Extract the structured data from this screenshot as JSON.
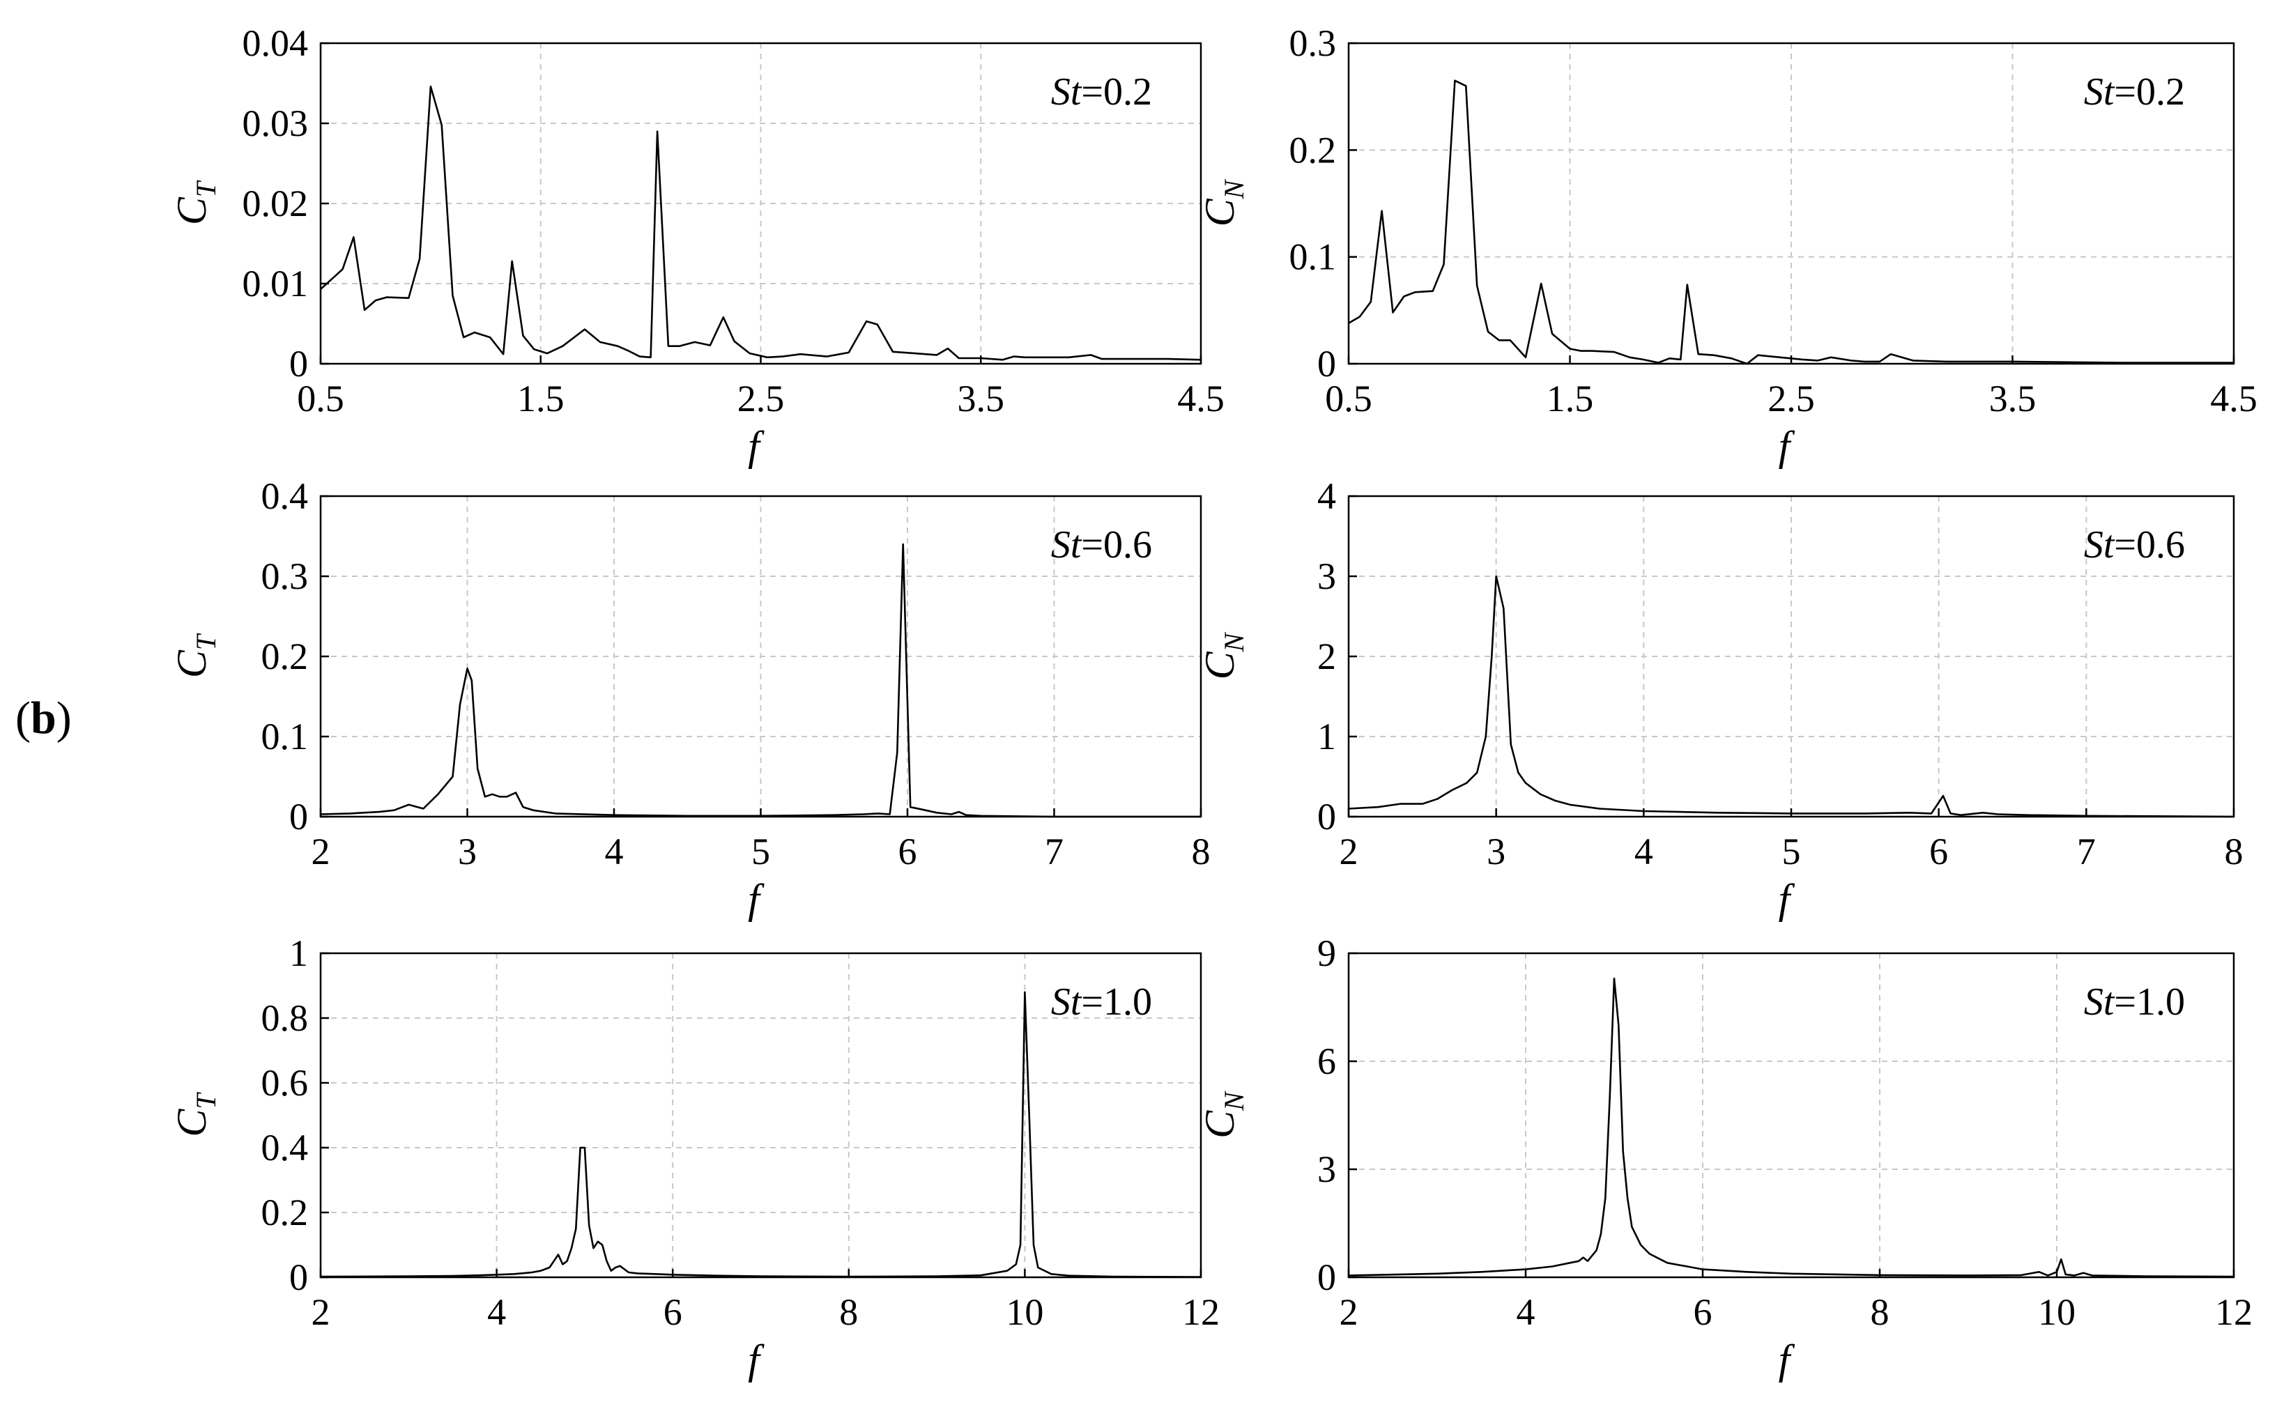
{
  "figure": {
    "panel_label_open": "(",
    "panel_label_letter": "b",
    "panel_label_close": ")"
  },
  "chart_data": [
    {
      "type": "line",
      "xlabel": "f",
      "ylabel": "C",
      "ylabel_sub": "T",
      "annotation": {
        "prefix": "St",
        "value": "=0.2"
      },
      "xlim": [
        0.5,
        4.5
      ],
      "ylim": [
        0,
        0.04
      ],
      "xticks": [
        0.5,
        1.5,
        2.5,
        3.5,
        4.5
      ],
      "xtick_labels": [
        "0.5",
        "1.5",
        "2.5",
        "3.5",
        "4.5"
      ],
      "yticks": [
        0,
        0.01,
        0.02,
        0.03,
        0.04
      ],
      "ytick_labels": [
        "0",
        "0.01",
        "0.02",
        "0.03",
        "0.04"
      ],
      "grid": true,
      "series": [
        {
          "x": [
            0.5,
            0.6,
            0.65,
            0.7,
            0.75,
            0.8,
            0.9,
            0.95,
            1.0,
            1.05,
            1.1,
            1.15,
            1.2,
            1.27,
            1.33,
            1.37,
            1.42,
            1.47,
            1.53,
            1.6,
            1.7,
            1.77,
            1.85,
            1.9,
            1.95,
            2.0,
            2.03,
            2.08,
            2.13,
            2.2,
            2.27,
            2.33,
            2.38,
            2.45,
            2.53,
            2.6,
            2.68,
            2.8,
            2.9,
            2.98,
            3.03,
            3.1,
            3.2,
            3.3,
            3.35,
            3.4,
            3.5,
            3.6,
            3.65,
            3.7,
            3.8,
            3.9,
            4.0,
            4.05,
            4.2,
            4.35,
            4.5
          ],
          "y": [
            0.0093,
            0.0118,
            0.0158,
            0.0067,
            0.0079,
            0.0083,
            0.0082,
            0.0131,
            0.0346,
            0.0298,
            0.0085,
            0.0033,
            0.0039,
            0.0033,
            0.0012,
            0.0128,
            0.0035,
            0.0018,
            0.0013,
            0.0022,
            0.0043,
            0.0027,
            0.0022,
            0.0016,
            0.0009,
            0.0008,
            0.029,
            0.0022,
            0.0022,
            0.0027,
            0.0023,
            0.0058,
            0.0028,
            0.0013,
            0.0008,
            0.0009,
            0.0012,
            0.0009,
            0.0014,
            0.0053,
            0.0049,
            0.0015,
            0.0013,
            0.0011,
            0.0019,
            0.0007,
            0.0007,
            0.0005,
            0.0009,
            0.0008,
            0.0008,
            0.0008,
            0.0011,
            0.0006,
            0.0006,
            0.0006,
            0.0005
          ]
        }
      ]
    },
    {
      "type": "line",
      "xlabel": "f",
      "ylabel": "C",
      "ylabel_sub": "N",
      "annotation": {
        "prefix": "St",
        "value": "=0.2"
      },
      "xlim": [
        0.5,
        4.5
      ],
      "ylim": [
        0,
        0.3
      ],
      "xticks": [
        0.5,
        1.5,
        2.5,
        3.5,
        4.5
      ],
      "xtick_labels": [
        "0.5",
        "1.5",
        "2.5",
        "3.5",
        "4.5"
      ],
      "yticks": [
        0,
        0.1,
        0.2,
        0.3
      ],
      "ytick_labels": [
        "0",
        "0.1",
        "0.2",
        "0.3"
      ],
      "grid": true,
      "series": [
        {
          "x": [
            0.5,
            0.55,
            0.6,
            0.65,
            0.7,
            0.75,
            0.8,
            0.88,
            0.93,
            0.98,
            1.03,
            1.08,
            1.13,
            1.18,
            1.23,
            1.3,
            1.37,
            1.42,
            1.5,
            1.55,
            1.6,
            1.7,
            1.77,
            1.83,
            1.9,
            1.95,
            2.0,
            2.03,
            2.08,
            2.15,
            2.23,
            2.3,
            2.35,
            2.45,
            2.55,
            2.62,
            2.68,
            2.77,
            2.83,
            2.9,
            2.95,
            3.05,
            3.2,
            3.5,
            4.0,
            4.5
          ],
          "y": [
            0.038,
            0.044,
            0.058,
            0.143,
            0.048,
            0.063,
            0.067,
            0.068,
            0.093,
            0.265,
            0.26,
            0.073,
            0.03,
            0.022,
            0.022,
            0.006,
            0.075,
            0.028,
            0.014,
            0.012,
            0.012,
            0.011,
            0.006,
            0.004,
            0.001,
            0.005,
            0.004,
            0.074,
            0.009,
            0.008,
            0.005,
            0.0,
            0.008,
            0.006,
            0.004,
            0.003,
            0.006,
            0.003,
            0.002,
            0.002,
            0.009,
            0.003,
            0.002,
            0.002,
            0.001,
            0.001
          ]
        }
      ]
    },
    {
      "type": "line",
      "xlabel": "f",
      "ylabel": "C",
      "ylabel_sub": "T",
      "annotation": {
        "prefix": "St",
        "value": "=0.6"
      },
      "xlim": [
        2,
        8
      ],
      "ylim": [
        0,
        0.4
      ],
      "xticks": [
        2,
        3,
        4,
        5,
        6,
        7,
        8
      ],
      "xtick_labels": [
        "2",
        "3",
        "4",
        "5",
        "6",
        "7",
        "8"
      ],
      "yticks": [
        0,
        0.1,
        0.2,
        0.3,
        0.4
      ],
      "ytick_labels": [
        "0",
        "0.1",
        "0.2",
        "0.3",
        "0.4"
      ],
      "grid": true,
      "series": [
        {
          "x": [
            2.0,
            2.2,
            2.4,
            2.5,
            2.6,
            2.7,
            2.8,
            2.9,
            2.95,
            3.0,
            3.03,
            3.07,
            3.12,
            3.17,
            3.22,
            3.27,
            3.33,
            3.38,
            3.45,
            3.6,
            4.0,
            4.5,
            5.0,
            5.5,
            5.7,
            5.8,
            5.88,
            5.93,
            5.97,
            6.02,
            6.1,
            6.2,
            6.3,
            6.35,
            6.4,
            6.5,
            7.0,
            8.0
          ],
          "y": [
            0.003,
            0.004,
            0.006,
            0.008,
            0.015,
            0.01,
            0.028,
            0.05,
            0.14,
            0.185,
            0.17,
            0.06,
            0.025,
            0.028,
            0.025,
            0.025,
            0.03,
            0.012,
            0.008,
            0.004,
            0.002,
            0.001,
            0.001,
            0.002,
            0.003,
            0.004,
            0.003,
            0.08,
            0.34,
            0.012,
            0.009,
            0.005,
            0.003,
            0.006,
            0.002,
            0.001,
            0.0,
            0.0
          ]
        }
      ]
    },
    {
      "type": "line",
      "xlabel": "f",
      "ylabel": "C",
      "ylabel_sub": "N",
      "annotation": {
        "prefix": "St",
        "value": "=0.6"
      },
      "xlim": [
        2,
        8
      ],
      "ylim": [
        0,
        4
      ],
      "xticks": [
        2,
        3,
        4,
        5,
        6,
        7,
        8
      ],
      "xtick_labels": [
        "2",
        "3",
        "4",
        "5",
        "6",
        "7",
        "8"
      ],
      "yticks": [
        0,
        1,
        2,
        3,
        4
      ],
      "ytick_labels": [
        "0",
        "1",
        "2",
        "3",
        "4"
      ],
      "grid": true,
      "series": [
        {
          "x": [
            2.0,
            2.2,
            2.35,
            2.5,
            2.6,
            2.7,
            2.8,
            2.87,
            2.93,
            2.97,
            3.0,
            3.05,
            3.1,
            3.15,
            3.2,
            3.3,
            3.4,
            3.5,
            3.7,
            4.0,
            4.5,
            5.0,
            5.5,
            5.8,
            5.95,
            6.03,
            6.08,
            6.15,
            6.3,
            6.4,
            6.6,
            7.0,
            8.0
          ],
          "y": [
            0.1,
            0.12,
            0.16,
            0.16,
            0.22,
            0.33,
            0.42,
            0.55,
            1.0,
            2.0,
            3.0,
            2.6,
            0.9,
            0.55,
            0.42,
            0.28,
            0.2,
            0.15,
            0.1,
            0.07,
            0.05,
            0.04,
            0.04,
            0.05,
            0.04,
            0.26,
            0.04,
            0.02,
            0.05,
            0.03,
            0.02,
            0.01,
            0.0
          ]
        }
      ]
    },
    {
      "type": "line",
      "xlabel": "f",
      "ylabel": "C",
      "ylabel_sub": "T",
      "annotation": {
        "prefix": "St",
        "value": "=1.0"
      },
      "xlim": [
        2,
        12
      ],
      "ylim": [
        0,
        1
      ],
      "xticks": [
        2,
        4,
        6,
        8,
        10,
        12
      ],
      "xtick_labels": [
        "2",
        "4",
        "6",
        "8",
        "10",
        "12"
      ],
      "yticks": [
        0,
        0.2,
        0.4,
        0.6,
        0.8,
        1
      ],
      "ytick_labels": [
        "0",
        "0.2",
        "0.4",
        "0.6",
        "0.8",
        "1"
      ],
      "grid": true,
      "series": [
        {
          "x": [
            2.0,
            3.0,
            3.5,
            3.8,
            4.0,
            4.2,
            4.4,
            4.5,
            4.6,
            4.7,
            4.75,
            4.8,
            4.85,
            4.9,
            4.95,
            5.0,
            5.05,
            5.1,
            5.15,
            5.2,
            5.25,
            5.3,
            5.35,
            5.4,
            5.5,
            5.6,
            5.8,
            6.0,
            6.5,
            7.0,
            8.0,
            9.0,
            9.5,
            9.8,
            9.9,
            9.95,
            10.0,
            10.05,
            10.1,
            10.15,
            10.3,
            10.5,
            11.0,
            12.0
          ],
          "y": [
            0.002,
            0.003,
            0.004,
            0.006,
            0.008,
            0.01,
            0.015,
            0.02,
            0.03,
            0.07,
            0.04,
            0.05,
            0.09,
            0.15,
            0.4,
            0.4,
            0.16,
            0.09,
            0.11,
            0.1,
            0.05,
            0.02,
            0.03,
            0.035,
            0.015,
            0.012,
            0.01,
            0.008,
            0.005,
            0.003,
            0.002,
            0.003,
            0.006,
            0.02,
            0.04,
            0.1,
            0.88,
            0.5,
            0.1,
            0.03,
            0.01,
            0.005,
            0.002,
            0.001
          ]
        }
      ]
    },
    {
      "type": "line",
      "xlabel": "f",
      "ylabel": "C",
      "ylabel_sub": "N",
      "annotation": {
        "prefix": "St",
        "value": "=1.0"
      },
      "xlim": [
        2,
        12
      ],
      "ylim": [
        0,
        9
      ],
      "xticks": [
        2,
        4,
        6,
        8,
        10,
        12
      ],
      "xtick_labels": [
        "2",
        "4",
        "6",
        "8",
        "10",
        "12"
      ],
      "yticks": [
        0,
        3,
        6,
        9
      ],
      "ytick_labels": [
        "0",
        "3",
        "6",
        "9"
      ],
      "grid": true,
      "series": [
        {
          "x": [
            2.0,
            3.0,
            3.5,
            4.0,
            4.3,
            4.5,
            4.6,
            4.65,
            4.7,
            4.8,
            4.85,
            4.9,
            4.95,
            5.0,
            5.05,
            5.1,
            5.15,
            5.2,
            5.3,
            5.4,
            5.6,
            6.0,
            6.5,
            7.0,
            8.0,
            9.0,
            9.6,
            9.8,
            9.9,
            10.0,
            10.05,
            10.1,
            10.2,
            10.3,
            10.4,
            11.0,
            12.0
          ],
          "y": [
            0.05,
            0.1,
            0.15,
            0.22,
            0.3,
            0.4,
            0.45,
            0.55,
            0.45,
            0.75,
            1.2,
            2.2,
            5.0,
            8.3,
            7.0,
            3.5,
            2.2,
            1.4,
            0.9,
            0.65,
            0.4,
            0.22,
            0.15,
            0.1,
            0.06,
            0.05,
            0.06,
            0.15,
            0.05,
            0.15,
            0.5,
            0.08,
            0.05,
            0.12,
            0.05,
            0.03,
            0.02
          ]
        }
      ]
    }
  ]
}
